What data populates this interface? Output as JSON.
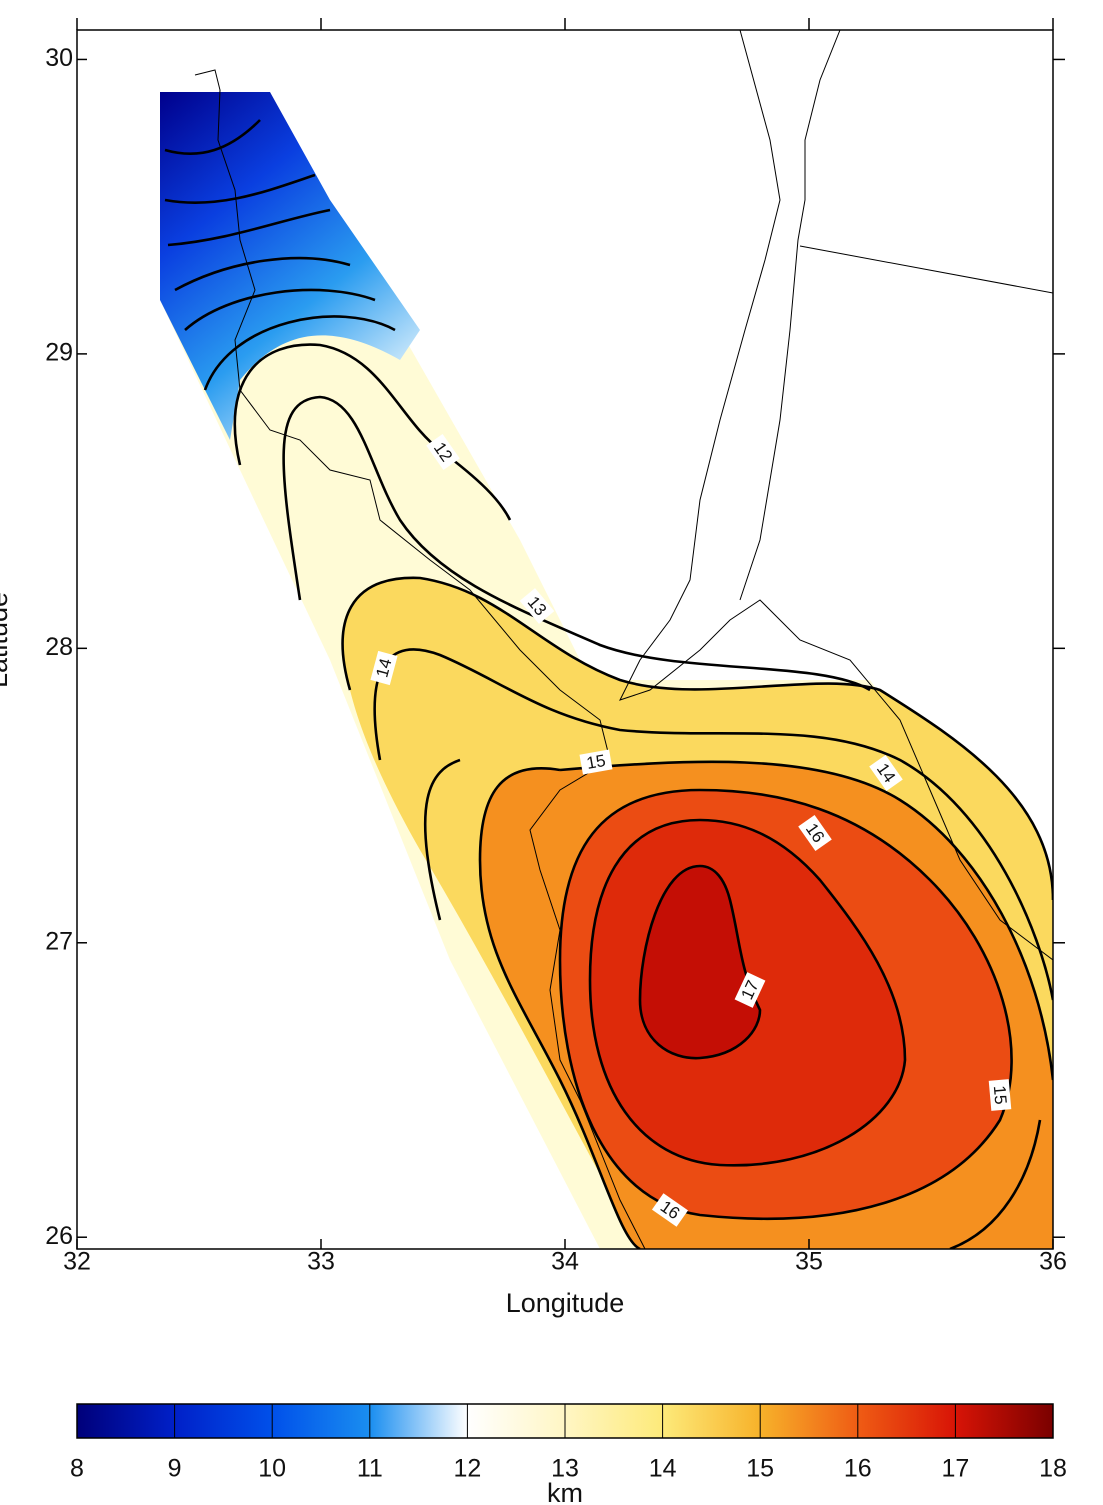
{
  "chart_data": {
    "type": "contour-map",
    "xlabel": "Longitude",
    "ylabel": "Latitude",
    "xlim": [
      32,
      36
    ],
    "ylim": [
      25.96,
      30.1
    ],
    "xticks": [
      32,
      33,
      34,
      35,
      36
    ],
    "yticks": [
      26,
      27,
      28,
      29,
      30
    ],
    "colorbar": {
      "label": "km",
      "lim": [
        8,
        18
      ],
      "ticks": [
        8,
        9,
        10,
        11,
        12,
        13,
        14,
        15,
        16,
        17,
        18
      ],
      "colors": [
        "#00007a",
        "#0020c8",
        "#0050ea",
        "#1a8ef0",
        "#ffffff",
        "#fff6c4",
        "#fdea7a",
        "#f7b22a",
        "#ef5c14",
        "#d81406",
        "#7a0000"
      ]
    },
    "contour_labels": [
      12,
      13,
      14,
      15,
      14,
      16,
      17,
      15,
      16
    ]
  }
}
